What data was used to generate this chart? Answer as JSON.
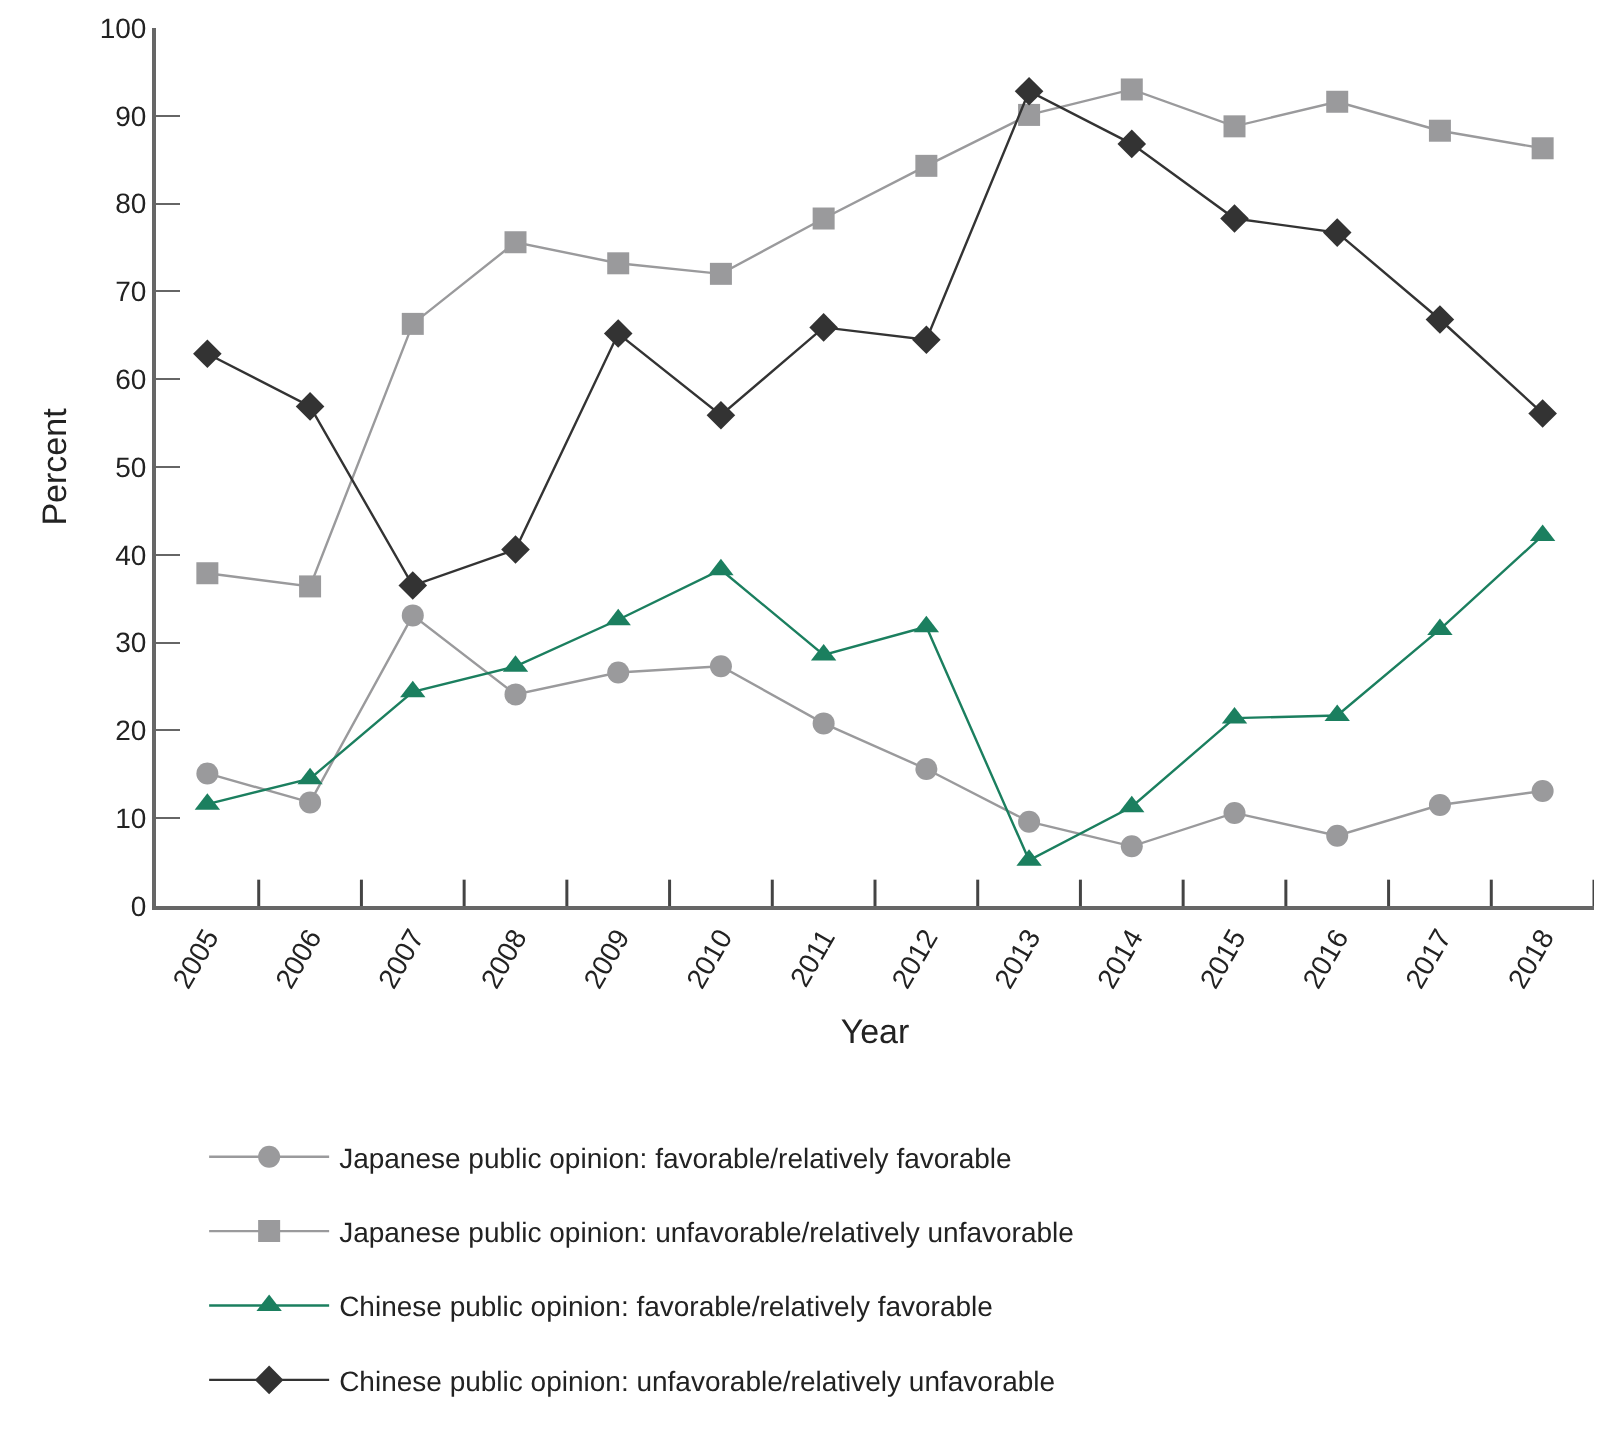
{
  "chart_data": {
    "type": "line",
    "xlabel": "Year",
    "ylabel": "Percent",
    "categories": [
      "2005",
      "2006",
      "2007",
      "2008",
      "2009",
      "2010",
      "2011",
      "2012",
      "2013",
      "2014",
      "2015",
      "2016",
      "2017",
      "2018"
    ],
    "ylim": [
      0,
      100
    ],
    "yticks": [
      0,
      10,
      20,
      30,
      40,
      50,
      60,
      70,
      80,
      90,
      100
    ],
    "legend": "bottom",
    "series": [
      {
        "name": "Japanese public opinion: favorable/relatively favorable",
        "color": "#9a9a9c",
        "marker": "circle",
        "values": [
          15.1,
          11.8,
          33.1,
          24.1,
          26.6,
          27.3,
          20.8,
          15.6,
          9.6,
          6.8,
          10.6,
          8.0,
          11.5,
          13.1
        ]
      },
      {
        "name": "Japanese public opinion: unfavorable/relatively unfavorable",
        "color": "#9a9a9c",
        "marker": "square",
        "values": [
          37.9,
          36.4,
          66.3,
          75.6,
          73.2,
          72.0,
          78.3,
          84.3,
          90.1,
          93.0,
          88.8,
          91.6,
          88.3,
          86.3
        ]
      },
      {
        "name": "Chinese public opinion: favorable/relatively favorable",
        "color": "#1b7f5f",
        "marker": "triangle",
        "values": [
          11.6,
          14.5,
          24.4,
          27.3,
          32.6,
          38.3,
          28.6,
          31.8,
          5.2,
          11.3,
          21.4,
          21.7,
          31.5,
          42.2
        ]
      },
      {
        "name": "Chinese public opinion: unfavorable/relatively unfavorable",
        "color": "#333333",
        "marker": "diamond",
        "values": [
          62.9,
          56.9,
          36.5,
          40.6,
          65.2,
          55.9,
          65.9,
          64.5,
          92.8,
          86.8,
          78.3,
          76.7,
          66.8,
          56.1
        ]
      }
    ]
  }
}
